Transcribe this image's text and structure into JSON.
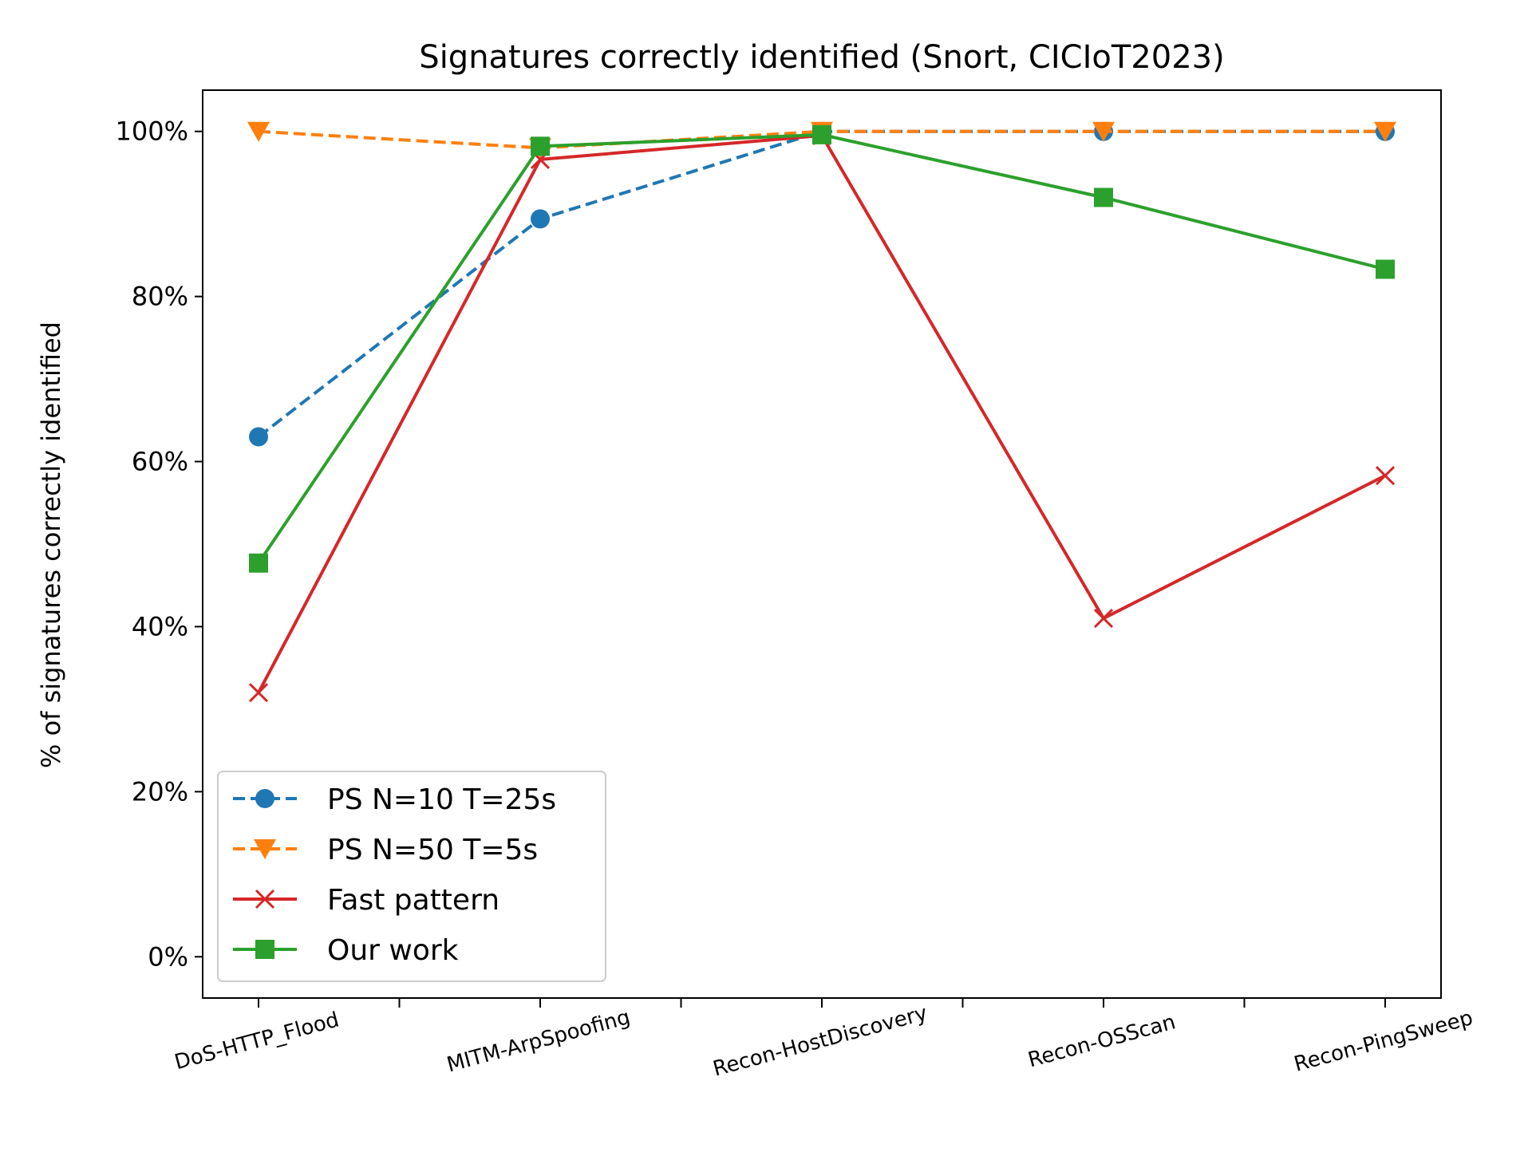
{
  "chart_data": {
    "type": "line",
    "title": "Signatures correctly identified (Snort, CICIoT2023)",
    "xlabel": "",
    "ylabel": "% of signatures correctly identified",
    "categories": [
      "DoS-HTTP_Flood",
      "MITM-ArpSpoofing",
      "Recon-HostDiscovery",
      "Recon-OSScan",
      "Recon-PingSweep"
    ],
    "ylim": [
      -5,
      105
    ],
    "yticks": [
      0,
      20,
      40,
      60,
      80,
      100
    ],
    "ytick_labels": [
      "0%",
      "20%",
      "40%",
      "60%",
      "80%",
      "100%"
    ],
    "grid": false,
    "legend_position": "lower-left",
    "series": [
      {
        "name": "PS N=10 T=25s",
        "values": [
          63.0,
          89.4,
          100.0,
          100.0,
          100.0
        ],
        "color": "#1f77b4",
        "linestyle": "dashed",
        "marker": "circle"
      },
      {
        "name": "PS N=50 T=5s",
        "values": [
          100.0,
          98.0,
          100.0,
          100.0,
          100.0
        ],
        "color": "#ff7f0e",
        "linestyle": "dashed",
        "marker": "triangle-down"
      },
      {
        "name": "Fast pattern",
        "values": [
          32.0,
          96.6,
          99.5,
          41.0,
          58.3
        ],
        "color": "#d62728",
        "linestyle": "solid",
        "marker": "x"
      },
      {
        "name": "Our work",
        "values": [
          47.7,
          98.2,
          99.6,
          92.0,
          83.3
        ],
        "color": "#2ca02c",
        "linestyle": "solid",
        "marker": "square"
      }
    ]
  }
}
